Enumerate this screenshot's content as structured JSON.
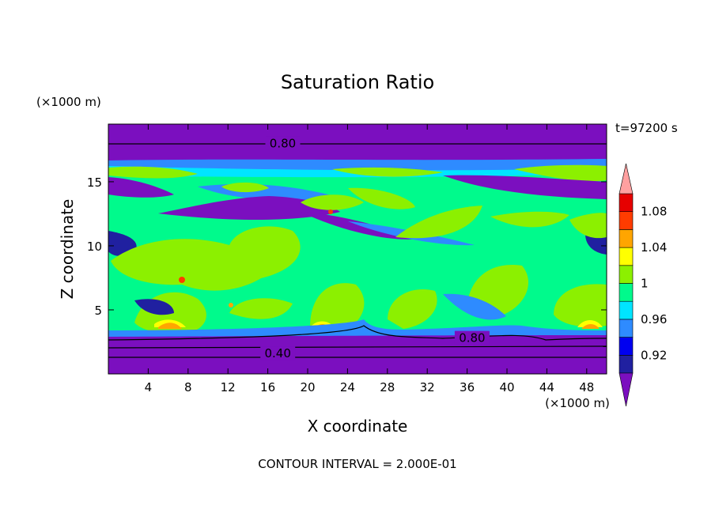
{
  "chart_data": {
    "type": "heatmap",
    "title": "Saturation Ratio",
    "xlabel": "X coordinate",
    "ylabel": "Z coordinate",
    "x_unit": "(×1000 m)",
    "y_unit": "(×1000 m)",
    "time_label": "t=97200 s",
    "footer": "CONTOUR INTERVAL = 2.000E-01",
    "xlim": [
      0,
      50
    ],
    "ylim": [
      0,
      19.5
    ],
    "x_ticks": [
      4,
      8,
      12,
      16,
      20,
      24,
      28,
      32,
      36,
      40,
      44,
      48
    ],
    "y_ticks": [
      5,
      10,
      15
    ],
    "contour_labels": [
      {
        "text": "0.80",
        "x": 17.5,
        "z": 18.0
      },
      {
        "text": "0.80",
        "x": 36.5,
        "z": 2.8
      },
      {
        "text": "0.40",
        "x": 17.0,
        "z": 1.6
      }
    ],
    "colorbar": {
      "labels": [
        "1.08",
        "1.04",
        "1",
        "0.96",
        "0.92"
      ],
      "levels": [
        0.9,
        0.92,
        0.94,
        0.96,
        0.98,
        1.0,
        1.02,
        1.04,
        1.06,
        1.08,
        1.1
      ],
      "colors": [
        "#7B0FBF",
        "#2020A0",
        "#0000F0",
        "#2E8BFF",
        "#00E5FF",
        "#00FA8C",
        "#8CF000",
        "#FFFF00",
        "#FFA500",
        "#FF3C00",
        "#E60000",
        "#FFA0A0"
      ],
      "under_color": "#7B0FBF",
      "over_color": "#FFA0A0"
    }
  }
}
